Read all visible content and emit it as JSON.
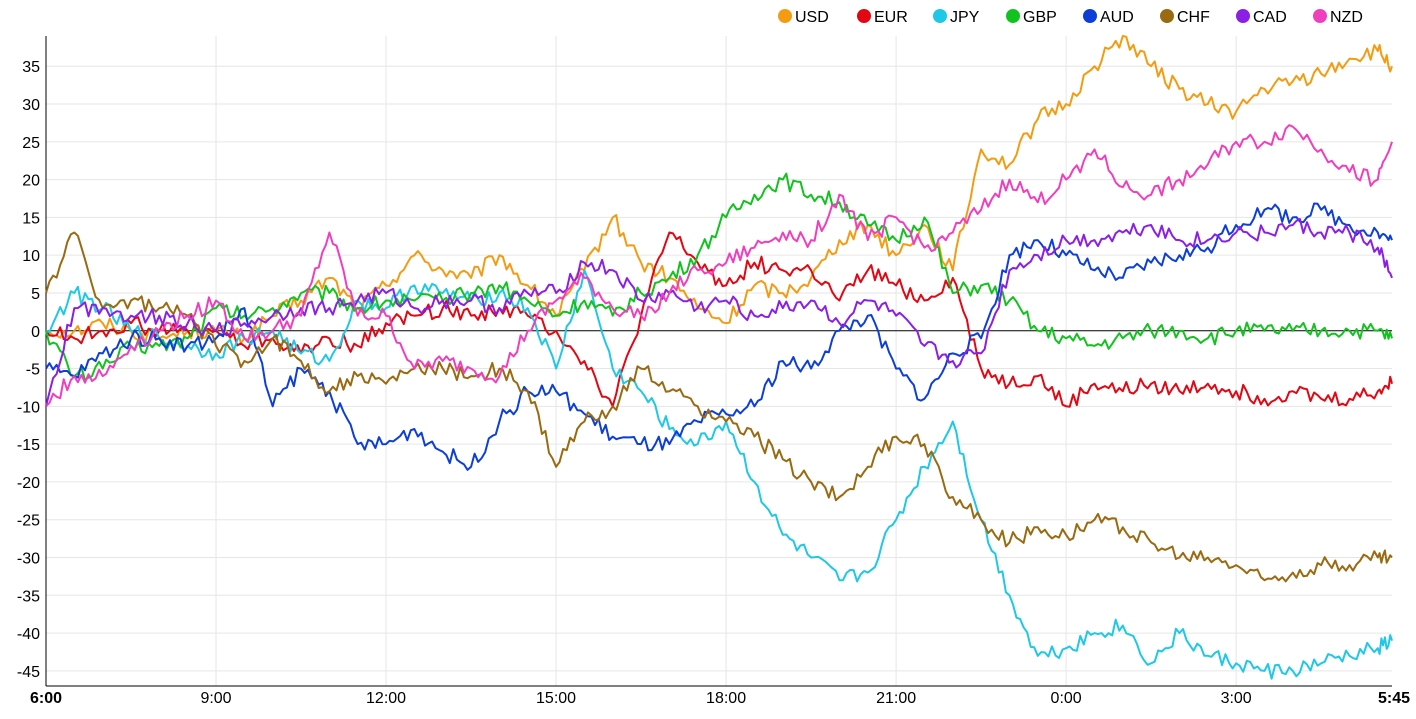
{
  "chart_data": {
    "type": "line",
    "title": "",
    "xlabel": "",
    "ylabel": "",
    "ylim": [
      -47,
      39
    ],
    "yticks": [
      35,
      30,
      25,
      20,
      15,
      10,
      5,
      0,
      -5,
      -10,
      -15,
      -20,
      -25,
      -30,
      -35,
      -40,
      -45
    ],
    "x_ticks": [
      {
        "label": "6:00",
        "hours": 0,
        "bold": true
      },
      {
        "label": "9:00",
        "hours": 3,
        "bold": false
      },
      {
        "label": "12:00",
        "hours": 6,
        "bold": false
      },
      {
        "label": "15:00",
        "hours": 9,
        "bold": false
      },
      {
        "label": "18:00",
        "hours": 12,
        "bold": false
      },
      {
        "label": "21:00",
        "hours": 15,
        "bold": false
      },
      {
        "label": "0:00",
        "hours": 18,
        "bold": false
      },
      {
        "label": "3:00",
        "hours": 21,
        "bold": false
      },
      {
        "label": "5:45",
        "hours": 23.75,
        "bold": true
      }
    ],
    "grid": true,
    "legend_position": "top-right",
    "series": [
      {
        "name": "USD",
        "color": "#f39c12",
        "x": [
          0,
          0.5,
          1,
          1.5,
          2,
          2.5,
          3,
          3.5,
          4,
          4.5,
          5,
          5.5,
          6,
          6.5,
          7,
          7.5,
          8,
          8.5,
          9,
          9.5,
          10,
          10.5,
          11,
          11.5,
          12,
          12.5,
          13,
          13.5,
          14,
          14.5,
          15,
          15.5,
          16,
          16.5,
          17,
          17.5,
          18,
          18.5,
          19,
          19.5,
          20,
          20.5,
          21,
          21.5,
          22,
          22.5,
          23,
          23.5,
          23.75
        ],
        "y": [
          0,
          0,
          1,
          0,
          -1,
          0,
          0,
          -1,
          2,
          4,
          7,
          3,
          6,
          10,
          8,
          7,
          10,
          6,
          2,
          8,
          15,
          9,
          7,
          3,
          1,
          6,
          5,
          7,
          12,
          14,
          10,
          14,
          8,
          24,
          22,
          28,
          30,
          35,
          39,
          35,
          32,
          30,
          29,
          32,
          33,
          34,
          36,
          37,
          35
        ]
      },
      {
        "name": "EUR",
        "color": "#e30613",
        "x": [
          0,
          0.5,
          1,
          1.5,
          2,
          2.5,
          3,
          3.5,
          4,
          4.5,
          5,
          5.5,
          6,
          6.5,
          7,
          7.5,
          8,
          8.5,
          9,
          9.5,
          10,
          10.5,
          11,
          11.5,
          12,
          12.5,
          13,
          13.5,
          14,
          14.5,
          15,
          15.5,
          16,
          16.5,
          17,
          17.5,
          18,
          18.5,
          19,
          19.5,
          20,
          20.5,
          21,
          21.5,
          22,
          22.5,
          23,
          23.5,
          23.75
        ],
        "y": [
          0,
          -1,
          0,
          1,
          0,
          0,
          0,
          -2,
          -1,
          -3,
          -1,
          -2,
          1,
          2,
          3,
          2,
          3,
          2,
          0,
          -4,
          -10,
          2,
          13,
          9,
          6,
          9,
          8,
          8,
          4,
          8,
          6,
          4,
          7,
          -5,
          -7,
          -6,
          -10,
          -7,
          -8,
          -7,
          -8,
          -7,
          -8,
          -9,
          -8,
          -9,
          -9,
          -8,
          -7
        ]
      },
      {
        "name": "JPY",
        "color": "#1ec8e6",
        "x": [
          0,
          0.5,
          1,
          1.5,
          2,
          2.5,
          3,
          3.5,
          4,
          4.5,
          5,
          5.5,
          6,
          6.5,
          7,
          7.5,
          8,
          8.5,
          9,
          9.5,
          10,
          10.5,
          11,
          11.5,
          12,
          12.5,
          13,
          13.5,
          14,
          14.5,
          15,
          15.5,
          16,
          16.5,
          17,
          17.5,
          18,
          18.5,
          19,
          19.5,
          20,
          20.5,
          21,
          21.5,
          22,
          22.5,
          23,
          23.5,
          23.75
        ],
        "y": [
          0,
          5,
          3,
          0,
          -1,
          -2,
          -3,
          -1,
          0,
          -3,
          -4,
          4,
          3,
          6,
          5,
          4,
          5,
          3,
          -5,
          8,
          -5,
          -8,
          -13,
          -15,
          -12,
          -20,
          -27,
          -30,
          -33,
          -32,
          -25,
          -18,
          -12,
          -25,
          -35,
          -43,
          -42,
          -40,
          -39,
          -44,
          -40,
          -43,
          -44,
          -45,
          -45,
          -44,
          -43,
          -42,
          -41
        ]
      },
      {
        "name": "GBP",
        "color": "#12c21e",
        "x": [
          0,
          0.5,
          1,
          1.5,
          2,
          2.5,
          3,
          3.5,
          4,
          4.5,
          5,
          5.5,
          6,
          6.5,
          7,
          7.5,
          8,
          8.5,
          9,
          9.5,
          10,
          10.5,
          11,
          11.5,
          12,
          12.5,
          13,
          13.5,
          14,
          14.5,
          15,
          15.5,
          16,
          16.5,
          17,
          17.5,
          18,
          18.5,
          19,
          19.5,
          20,
          20.5,
          21,
          21.5,
          22,
          22.5,
          23,
          23.5,
          23.75
        ],
        "y": [
          0,
          -6,
          -5,
          -2,
          -2,
          -1,
          3,
          2,
          3,
          5,
          5,
          3,
          4,
          4,
          4,
          5,
          6,
          4,
          2,
          4,
          2,
          5,
          7,
          10,
          15,
          18,
          20,
          18,
          17,
          14,
          12,
          15,
          5,
          6,
          4,
          0,
          -1,
          -2,
          -1,
          0,
          0,
          -1,
          0,
          0,
          0,
          0,
          0,
          0,
          -1
        ]
      },
      {
        "name": "AUD",
        "color": "#0d3fd8",
        "x": [
          0,
          0.5,
          1,
          1.5,
          2,
          2.5,
          3,
          3.5,
          4,
          4.5,
          5,
          5.5,
          6,
          6.5,
          7,
          7.5,
          8,
          8.5,
          9,
          9.5,
          10,
          10.5,
          11,
          11.5,
          12,
          12.5,
          13,
          13.5,
          14,
          14.5,
          15,
          15.5,
          16,
          16.5,
          17,
          17.5,
          18,
          18.5,
          19,
          19.5,
          20,
          20.5,
          21,
          21.5,
          22,
          22.5,
          23,
          23.5,
          23.75
        ],
        "y": [
          -5,
          -6,
          -3,
          -1,
          -1,
          -2,
          -1,
          3,
          -10,
          -5,
          -8,
          -15,
          -15,
          -13,
          -16,
          -18,
          -12,
          -8,
          -8,
          -11,
          -14,
          -15,
          -15,
          -12,
          -11,
          -10,
          -4,
          -5,
          0,
          2,
          -5,
          -9,
          -3,
          -1,
          10,
          12,
          10,
          8,
          7,
          9,
          10,
          11,
          14,
          16,
          15,
          16,
          14,
          13,
          12
        ]
      },
      {
        "name": "CHF",
        "color": "#9a6a10",
        "x": [
          0,
          0.5,
          1,
          1.5,
          2,
          2.5,
          3,
          3.5,
          4,
          4.5,
          5,
          5.5,
          6,
          6.5,
          7,
          7.5,
          8,
          8.5,
          9,
          9.5,
          10,
          10.5,
          11,
          11.5,
          12,
          12.5,
          13,
          13.5,
          14,
          14.5,
          15,
          15.5,
          16,
          16.5,
          17,
          17.5,
          18,
          18.5,
          19,
          19.5,
          20,
          20.5,
          21,
          21.5,
          22,
          22.5,
          23,
          23.5,
          23.75
        ],
        "y": [
          5,
          13,
          3,
          4,
          3,
          2,
          -2,
          -4,
          -1,
          -4,
          -8,
          -6,
          -7,
          -5,
          -5,
          -6,
          -5,
          -8,
          -18,
          -12,
          -10,
          -5,
          -8,
          -10,
          -12,
          -14,
          -17,
          -20,
          -22,
          -18,
          -14,
          -15,
          -22,
          -25,
          -28,
          -26,
          -27,
          -25,
          -26,
          -28,
          -30,
          -30,
          -31,
          -33,
          -32,
          -31,
          -31,
          -30,
          -30
        ]
      },
      {
        "name": "CAD",
        "color": "#8b1fe6",
        "x": [
          0,
          0.5,
          1,
          1.5,
          2,
          2.5,
          3,
          3.5,
          4,
          4.5,
          5,
          5.5,
          6,
          6.5,
          7,
          7.5,
          8,
          8.5,
          9,
          9.5,
          10,
          10.5,
          11,
          11.5,
          12,
          12.5,
          13,
          13.5,
          14,
          14.5,
          15,
          15.5,
          16,
          16.5,
          17,
          17.5,
          18,
          18.5,
          19,
          19.5,
          20,
          20.5,
          21,
          21.5,
          22,
          22.5,
          23,
          23.5,
          23.75
        ],
        "y": [
          -10,
          3,
          3,
          2,
          2,
          1,
          0,
          1,
          2,
          3,
          3,
          4,
          5,
          3,
          4,
          4,
          3,
          5,
          5,
          9,
          8,
          4,
          5,
          3,
          4,
          2,
          3,
          4,
          1,
          4,
          2,
          -2,
          -4,
          -3,
          8,
          10,
          12,
          12,
          13,
          14,
          12,
          12,
          13,
          13,
          14,
          13,
          13,
          11,
          7
        ]
      },
      {
        "name": "NZD",
        "color": "#ef3fbf",
        "x": [
          0,
          0.5,
          1,
          1.5,
          2,
          2.5,
          3,
          3.5,
          4,
          4.5,
          5,
          5.5,
          6,
          6.5,
          7,
          7.5,
          8,
          8.5,
          9,
          9.5,
          10,
          10.5,
          11,
          11.5,
          12,
          12.5,
          13,
          13.5,
          14,
          14.5,
          15,
          15.5,
          16,
          16.5,
          17,
          17.5,
          18,
          18.5,
          19,
          19.5,
          20,
          20.5,
          21,
          21.5,
          22,
          22.5,
          23,
          23.5,
          23.75
        ],
        "y": [
          -10,
          -6,
          -6,
          -2,
          0,
          2,
          4,
          -1,
          0,
          2,
          13,
          2,
          2,
          -5,
          -4,
          -5,
          -6,
          0,
          4,
          7,
          3,
          2,
          5,
          8,
          9,
          11,
          13,
          12,
          18,
          12,
          15,
          11,
          13,
          16,
          20,
          17,
          20,
          24,
          19,
          18,
          20,
          22,
          25,
          25,
          27,
          24,
          21,
          20,
          25
        ]
      }
    ]
  }
}
